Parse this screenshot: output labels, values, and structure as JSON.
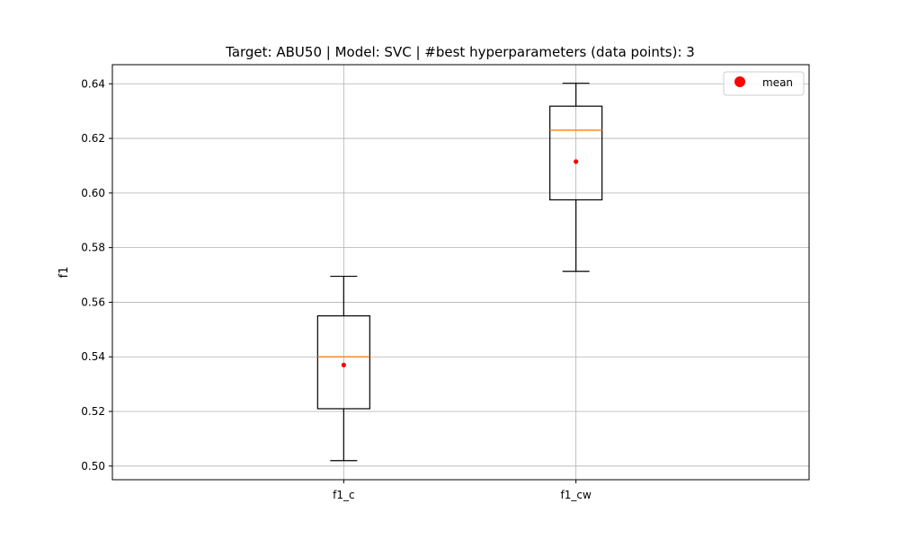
{
  "chart_data": {
    "type": "box",
    "title": "Target: ABU50 | Model: SVC | #best hyperparameters (data points): 3",
    "xlabel": "",
    "ylabel": "f1",
    "categories": [
      "f1_c",
      "f1_cw"
    ],
    "boxes": [
      {
        "name": "f1_c",
        "whisker_low": 0.502,
        "q1": 0.521,
        "median": 0.54,
        "q3": 0.555,
        "whisker_high": 0.5695,
        "mean": 0.537
      },
      {
        "name": "f1_cw",
        "whisker_low": 0.5713,
        "q1": 0.5975,
        "median": 0.623,
        "q3": 0.6318,
        "whisker_high": 0.6402,
        "mean": 0.6115
      }
    ],
    "ylim": [
      0.495,
      0.647
    ],
    "yticks": [
      0.5,
      0.52,
      0.54,
      0.56,
      0.58,
      0.6,
      0.62,
      0.64
    ],
    "ytick_labels": [
      "0.50",
      "0.52",
      "0.54",
      "0.56",
      "0.58",
      "0.60",
      "0.62",
      "0.64"
    ],
    "grid": true,
    "legend": {
      "placement": "top-right",
      "entries": [
        "mean"
      ]
    },
    "colors": {
      "box": "#000000",
      "median": "#ff7f0e",
      "mean": "#ff0000",
      "grid": "#b0b0b0"
    }
  }
}
